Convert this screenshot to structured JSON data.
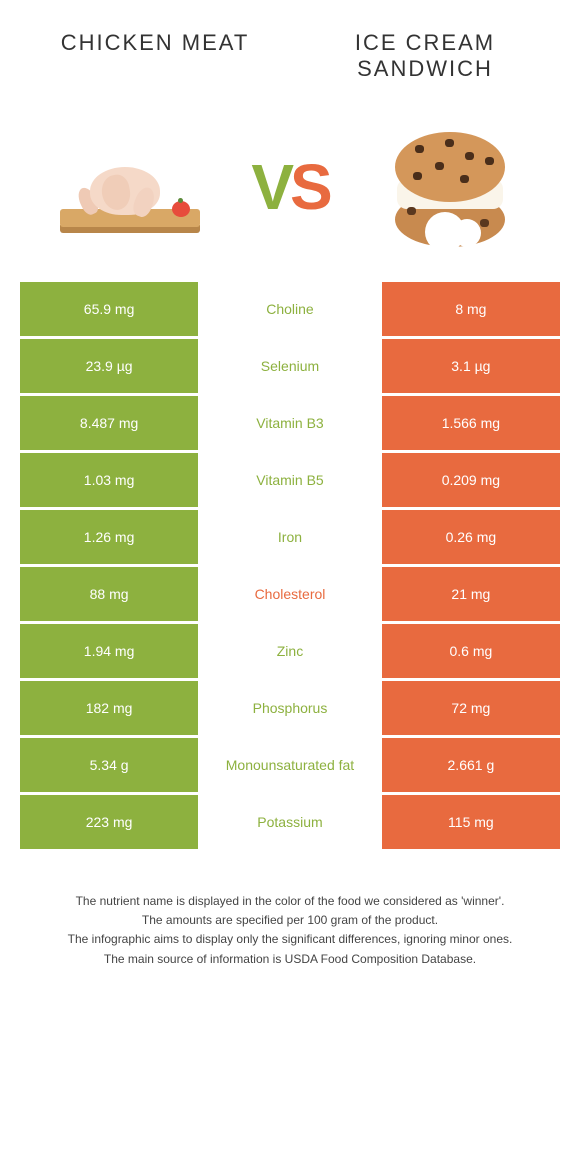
{
  "left": {
    "title": "CHICKEN MEAT",
    "color": "#8db13f"
  },
  "right": {
    "title": "ICE CREAM SANDWICH",
    "color": "#e86a3f"
  },
  "vs": {
    "v": "V",
    "s": "S"
  },
  "rows": [
    {
      "left": "65.9 mg",
      "name": "Choline",
      "right": "8 mg",
      "winner": "left"
    },
    {
      "left": "23.9 µg",
      "name": "Selenium",
      "right": "3.1 µg",
      "winner": "left"
    },
    {
      "left": "8.487 mg",
      "name": "Vitamin B3",
      "right": "1.566 mg",
      "winner": "left"
    },
    {
      "left": "1.03 mg",
      "name": "Vitamin B5",
      "right": "0.209 mg",
      "winner": "left"
    },
    {
      "left": "1.26 mg",
      "name": "Iron",
      "right": "0.26 mg",
      "winner": "left"
    },
    {
      "left": "88 mg",
      "name": "Cholesterol",
      "right": "21 mg",
      "winner": "right"
    },
    {
      "left": "1.94 mg",
      "name": "Zinc",
      "right": "0.6 mg",
      "winner": "left"
    },
    {
      "left": "182 mg",
      "name": "Phosphorus",
      "right": "72 mg",
      "winner": "left"
    },
    {
      "left": "5.34 g",
      "name": "Monounsaturated fat",
      "right": "2.661 g",
      "winner": "left"
    },
    {
      "left": "223 mg",
      "name": "Potassium",
      "right": "115 mg",
      "winner": "left"
    }
  ],
  "footer": {
    "l1": "The nutrient name is displayed in the color of the food we considered as 'winner'.",
    "l2": "The amounts are specified per 100 gram of the product.",
    "l3": "The infographic aims to display only the significant differences, ignoring minor ones.",
    "l4": "The main source of information is USDA Food Composition Database."
  },
  "colors": {
    "left_bg": "#8db13f",
    "right_bg": "#e86a3f"
  }
}
